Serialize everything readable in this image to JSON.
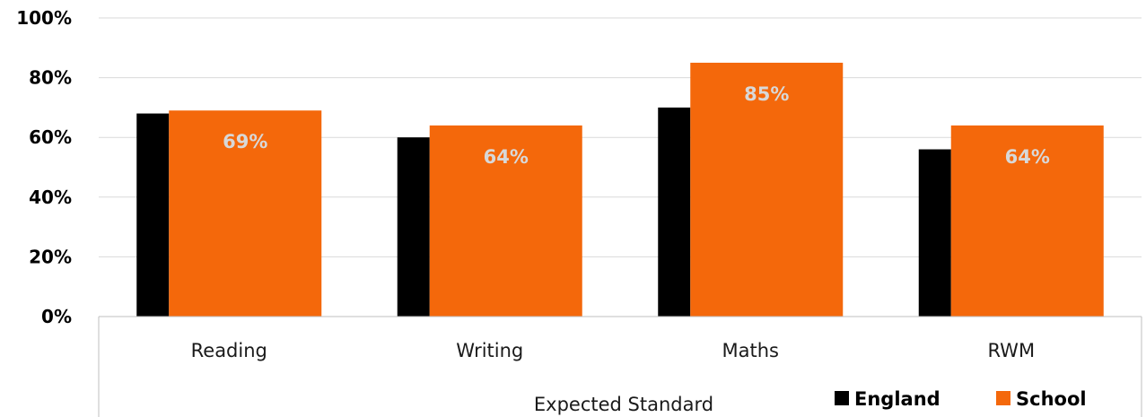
{
  "chart_data": {
    "type": "bar",
    "categories": [
      "Reading",
      "Writing",
      "Maths",
      "RWM"
    ],
    "series": [
      {
        "name": "England",
        "color": "#000000",
        "values": [
          68,
          60,
          70,
          56
        ]
      },
      {
        "name": "School",
        "color": "#f4680b",
        "values": [
          69,
          64,
          85,
          64
        ],
        "data_labels": [
          "69%",
          "64%",
          "85%",
          "64%"
        ]
      }
    ],
    "xlabel": "Expected Standard",
    "ylabel": "",
    "ylim": [
      0,
      100
    ],
    "yticks": [
      0,
      20,
      40,
      60,
      80,
      100
    ],
    "ytick_labels": [
      "0%",
      "20%",
      "40%",
      "60%",
      "80%",
      "100%"
    ],
    "grid": true,
    "legend_position": "bottom-right"
  }
}
